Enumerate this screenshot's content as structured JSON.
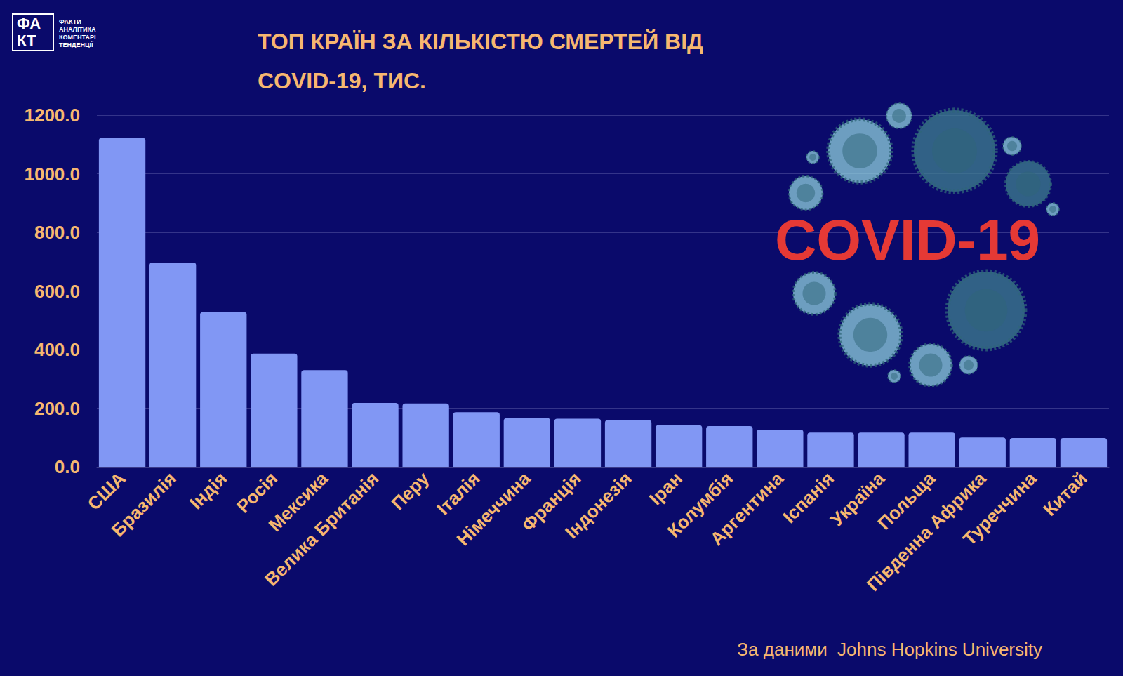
{
  "chart_data": {
    "type": "bar",
    "title": "ТОП КРАЇН ЗА КІЛЬКІСТЮ СМЕРТЕЙ ВІД COVID-19, ТИС.",
    "categories": [
      "США",
      "Бразилія",
      "Індія",
      "Росія",
      "Мексика",
      "Велика Британія",
      "Перу",
      "Італія",
      "Німеччина",
      "Франція",
      "Індонезія",
      "Іран",
      "Колумбія",
      "Аргентина",
      "Іспанія",
      "Україна",
      "Польща",
      "Південна Африка",
      "Туреччина",
      "Китай"
    ],
    "values": [
      1122,
      697,
      528,
      386,
      330,
      218,
      216,
      186,
      166,
      164,
      159,
      142,
      139,
      127,
      117,
      117,
      117,
      100,
      98,
      98
    ],
    "color": "#8197f4",
    "ylim": [
      0,
      1200
    ],
    "yticks": [
      {
        "value": 0,
        "label": "0.0"
      },
      {
        "value": 200,
        "label": "200.0"
      },
      {
        "value": 400,
        "label": "400.0"
      },
      {
        "value": 600,
        "label": "600.0"
      },
      {
        "value": 800,
        "label": "800.0"
      },
      {
        "value": 1000,
        "label": "1000.0"
      },
      {
        "value": 1200,
        "label": "1200.0"
      }
    ],
    "grid": true,
    "source": "За даними  Johns Hopkins University",
    "annotations": [
      "COVID-19",
      "ФА",
      "КТ",
      "ФАКТИ",
      "АНАЛІТИКА",
      "КОМЕНТАРІ",
      "ТЕНДЕНЦІЇ"
    ]
  }
}
